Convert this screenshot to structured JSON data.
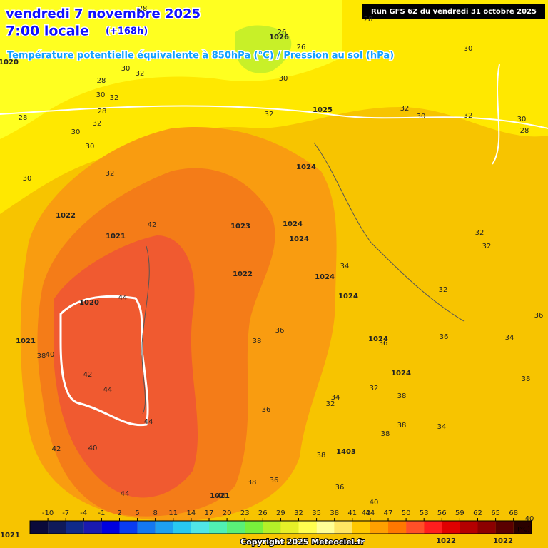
{
  "header": {
    "date": "vendredi 7 novembre 2025",
    "time": "7:00 locale",
    "lead": "(+168h)",
    "field": "Température potentielle équivalente à 850hPa (°C) / Pression au sol (hPa)"
  },
  "run": "Run GFS 6Z du vendredi 31 octobre 2025",
  "colorbar": {
    "ticks": [
      -10,
      -7,
      -4,
      -1,
      2,
      5,
      8,
      11,
      14,
      17,
      20,
      23,
      26,
      29,
      32,
      35,
      38,
      41,
      44,
      47,
      50,
      53,
      56,
      59,
      62,
      65,
      68
    ],
    "unit": "(°C)",
    "colors": [
      "#0a0a3a",
      "#101a5a",
      "#102a8a",
      "#1a1ab0",
      "#0000e0",
      "#0a3cf0",
      "#1478f0",
      "#1ea0f0",
      "#28c8f0",
      "#50e6e6",
      "#50f0b4",
      "#5af078",
      "#78f03c",
      "#b4f028",
      "#e6f028",
      "#ffff50",
      "#ffff96",
      "#ffe664",
      "#ffc800",
      "#ffa000",
      "#ff7800",
      "#ff5028",
      "#ff1e1e",
      "#e00000",
      "#b40000",
      "#8c0000",
      "#5a0000",
      "#2a0000"
    ]
  },
  "copyright": "Copyright 2025 Meteociel.fr",
  "temperature_labels": [
    "28",
    "28",
    "26",
    "26",
    "30",
    "30",
    "28",
    "30",
    "32",
    "30",
    "32",
    "28",
    "32",
    "30",
    "30",
    "32",
    "30",
    "28",
    "32",
    "32",
    "30",
    "32",
    "30",
    "28",
    "42",
    "32",
    "32",
    "34",
    "32",
    "36",
    "36",
    "38",
    "36",
    "34",
    "36",
    "42",
    "40",
    "38",
    "44",
    "32",
    "38",
    "34",
    "32",
    "36",
    "38",
    "38",
    "34",
    "38",
    "44",
    "42",
    "40",
    "38",
    "36",
    "38",
    "40",
    "44",
    "36",
    "40",
    "42",
    "40",
    "44"
  ],
  "pressure_labels": [
    "1020",
    "1026",
    "1025",
    "1024",
    "1022",
    "1021",
    "1023",
    "1024",
    "1024",
    "1022",
    "1024",
    "1024",
    "1020",
    "1021",
    "1024",
    "1024",
    "1403",
    "1021",
    "1021",
    "1022",
    "1022"
  ]
}
